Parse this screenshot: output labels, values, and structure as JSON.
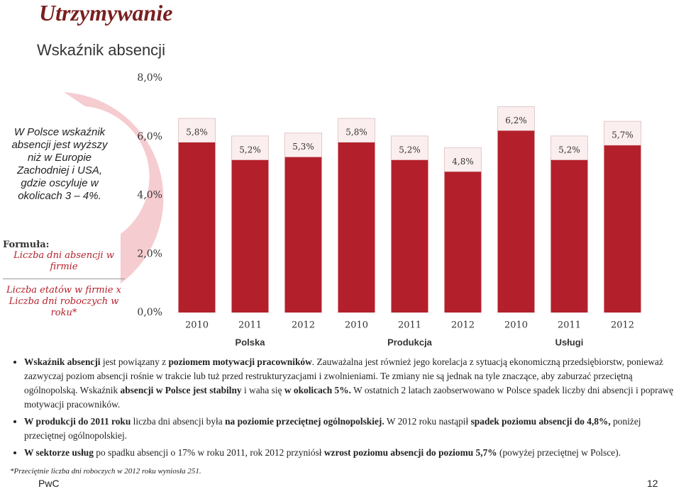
{
  "title": "Utrzymywanie",
  "sidebar_note": "W Polsce wskaźnik absencji jest wyższy niż w Europie Zachodniej i USA, gdzie oscyluje w okolicach 3 – 4%.",
  "formula": {
    "label": "Formuła:",
    "numerator": "Liczba dni absencji w firmie",
    "denominator": "Liczba etatów w firmie x Liczba dni roboczych w roku*"
  },
  "chart_data": {
    "type": "bar",
    "title": "Wskaźnik absencji",
    "categories": [
      "2010",
      "2011",
      "2012",
      "2010",
      "2011",
      "2012",
      "2010",
      "2011",
      "2012"
    ],
    "groups": [
      "Polska",
      "Produkcja",
      "Usługi"
    ],
    "values": [
      5.8,
      5.2,
      5.3,
      5.8,
      5.2,
      4.8,
      6.2,
      5.2,
      5.7
    ],
    "value_labels": [
      "5,8%",
      "5,2%",
      "5,3%",
      "5,8%",
      "5,2%",
      "4,8%",
      "6,2%",
      "5,2%",
      "5,7%"
    ],
    "color": "#b3202b",
    "ylim": [
      0,
      8
    ],
    "yticks": [
      {
        "value": 0,
        "label": "0,0%"
      },
      {
        "value": 2,
        "label": "2,0%"
      },
      {
        "value": 4,
        "label": "4,0%"
      },
      {
        "value": 6,
        "label": "6,0%"
      },
      {
        "value": 8,
        "label": "8,0%"
      }
    ],
    "grid": false
  },
  "bullets": [
    [
      {
        "text": "Wskaźnik absencji",
        "bold": true
      },
      {
        "text": " jest powiązany z ",
        "bold": false
      },
      {
        "text": "poziomem motywacji pracowników",
        "bold": true
      },
      {
        "text": ". Zauważalna jest również jego korelacja z sytuacją ekonomiczną przedsiębiorstw, ponieważ zazwyczaj poziom absencji rośnie w trakcie lub tuż przed restrukturyzacjami i zwolnieniami. Te zmiany nie są jednak na tyle znaczące, aby zaburzać przeciętną ogólnopolską. Wskaźnik ",
        "bold": false
      },
      {
        "text": "absencji w Polsce jest stabilny",
        "bold": true
      },
      {
        "text": " i waha się ",
        "bold": false
      },
      {
        "text": "w okolicach 5%.",
        "bold": true
      },
      {
        "text": " W ostatnich 2 latach zaobserwowano w Polsce spadek liczby dni absencji i poprawę motywacji pracowników.",
        "bold": false
      }
    ],
    [
      {
        "text": "W produkcji do 2011 roku",
        "bold": true
      },
      {
        "text": " liczba dni absencji była ",
        "bold": false
      },
      {
        "text": "na poziomie przeciętnej ogólnopolskiej.",
        "bold": true
      },
      {
        "text": " W 2012 roku nastąpił ",
        "bold": false
      },
      {
        "text": "spadek poziomu absencji do 4,8%,",
        "bold": true
      },
      {
        "text": " poniżej przeciętnej ogólnopolskiej.",
        "bold": false
      }
    ],
    [
      {
        "text": "W sektorze usług",
        "bold": true
      },
      {
        "text": " po spadku absencji o 17% w roku 2011, rok 2012 przyniósł ",
        "bold": false
      },
      {
        "text": "wzrost poziomu absencji do poziomu 5,7%",
        "bold": true
      },
      {
        "text": " (powyżej przeciętnej w Polsce).",
        "bold": false
      }
    ]
  ],
  "footnote": "*Przeciętnie liczba dni roboczych w 2012 roku wyniosła 251.",
  "footer": {
    "brand": "PwC",
    "page": "12"
  }
}
